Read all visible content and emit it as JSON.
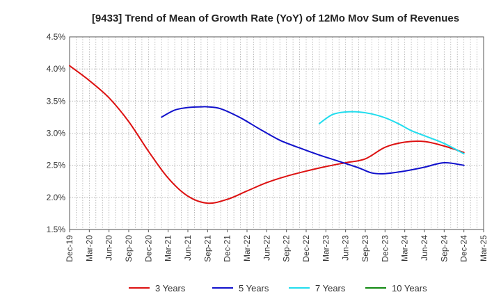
{
  "chart_data": {
    "type": "line",
    "title": "[9433]  Trend of Mean of Growth Rate (YoY) of 12Mo Mov Sum of Revenues",
    "xlabel": "",
    "ylabel": "",
    "ylim": [
      1.5,
      4.5
    ],
    "yticks": [
      1.5,
      2.0,
      2.5,
      3.0,
      3.5,
      4.0,
      4.5
    ],
    "ytick_labels": [
      "1.5%",
      "2.0%",
      "2.5%",
      "3.0%",
      "3.5%",
      "4.0%",
      "4.5%"
    ],
    "x_start": "Dec-19",
    "xtick_labels": [
      "Dec-19",
      "Mar-20",
      "Jun-20",
      "Sep-20",
      "Dec-20",
      "Mar-21",
      "Jun-21",
      "Sep-21",
      "Dec-21",
      "Mar-22",
      "Jun-22",
      "Sep-22",
      "Dec-22",
      "Mar-23",
      "Jun-23",
      "Sep-23",
      "Dec-23",
      "Mar-24",
      "Jun-24",
      "Sep-24",
      "Dec-24",
      "Mar-25"
    ],
    "xlim_months": [
      0,
      63
    ],
    "grid": true,
    "legend_position": "bottom",
    "series": [
      {
        "name": "3 Years",
        "color": "#dd1111",
        "x_months": [
          0,
          3,
          6,
          9,
          12,
          15,
          18,
          21,
          24,
          27,
          30,
          33,
          36,
          39,
          42,
          45,
          48,
          51,
          54,
          57,
          60
        ],
        "values": [
          4.05,
          3.82,
          3.55,
          3.18,
          2.72,
          2.3,
          2.02,
          1.91,
          1.97,
          2.1,
          2.23,
          2.33,
          2.41,
          2.48,
          2.54,
          2.6,
          2.78,
          2.86,
          2.87,
          2.8,
          2.7
        ]
      },
      {
        "name": "5 Years",
        "color": "#1111cc",
        "x_months": [
          14,
          16,
          18,
          20,
          21,
          23,
          26,
          29,
          32,
          35,
          38,
          41,
          44,
          46,
          48,
          51,
          54,
          57,
          60
        ],
        "values": [
          3.25,
          3.36,
          3.4,
          3.41,
          3.41,
          3.38,
          3.24,
          3.06,
          2.89,
          2.77,
          2.66,
          2.56,
          2.46,
          2.38,
          2.37,
          2.41,
          2.47,
          2.54,
          2.5
        ]
      },
      {
        "name": "7 Years",
        "color": "#22ddee",
        "x_months": [
          38,
          40,
          42,
          44,
          46,
          48,
          50,
          52,
          54,
          57,
          60
        ],
        "values": [
          3.15,
          3.29,
          3.33,
          3.33,
          3.3,
          3.24,
          3.15,
          3.04,
          2.96,
          2.84,
          2.68
        ]
      },
      {
        "name": "10 Years",
        "color": "#118811",
        "x_months": [],
        "values": []
      }
    ]
  }
}
